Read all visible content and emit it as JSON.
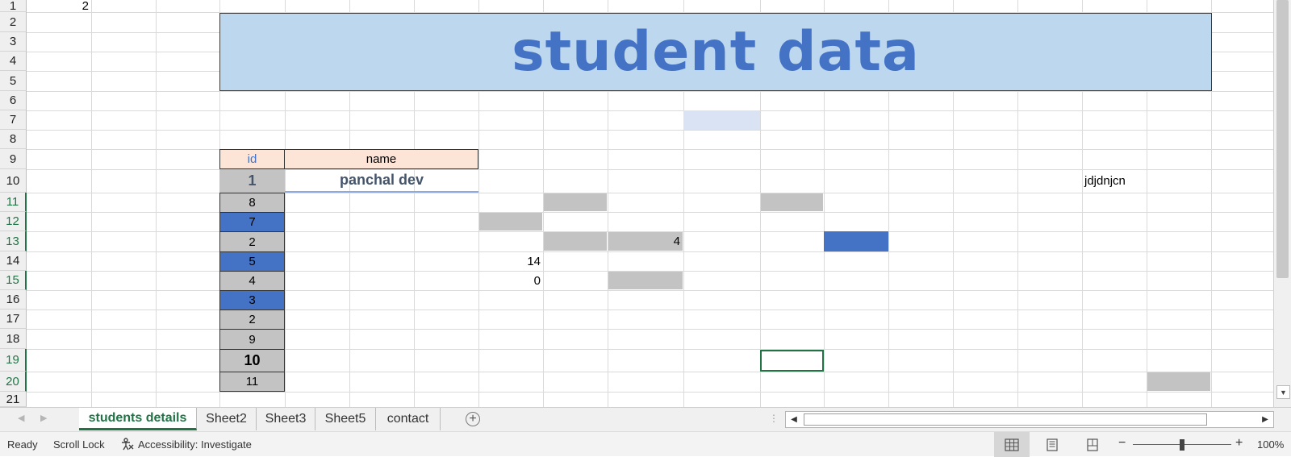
{
  "sheet": {
    "row_numbers": [
      "1",
      "2",
      "3",
      "4",
      "5",
      "6",
      "7",
      "8",
      "9",
      "10",
      "11",
      "12",
      "13",
      "14",
      "15",
      "16",
      "17",
      "18",
      "19",
      "20",
      "21"
    ],
    "a1_value": "2",
    "banner_title": "student data",
    "table": {
      "header_id": "id",
      "header_name": "name",
      "first_row": {
        "id": "1",
        "name": "panchal dev"
      },
      "ids": [
        "8",
        "7",
        "2",
        "5",
        "4",
        "3",
        "2",
        "9",
        "10",
        "11"
      ]
    },
    "values": {
      "k13": "4",
      "h14": "14",
      "h15": "0",
      "r10": "jdjdnjcn"
    },
    "colors": {
      "banner_fill": "#bdd7ee",
      "banner_text": "#4472c4",
      "header_fill": "#fce4d6",
      "gray_fill": "#c3c3c3",
      "blue_fill": "#4472c4",
      "selection": "#217346"
    }
  },
  "tabs": {
    "items": [
      "students details",
      "Sheet2",
      "Sheet3",
      "Sheet5",
      "contact"
    ],
    "active": "students details",
    "add_icon": "plus-circle-icon"
  },
  "status": {
    "ready": "Ready",
    "scroll_lock": "Scroll Lock",
    "accessibility": "Accessibility: Investigate",
    "zoom": "100%",
    "zoom_minus": "−",
    "zoom_plus": "+"
  }
}
